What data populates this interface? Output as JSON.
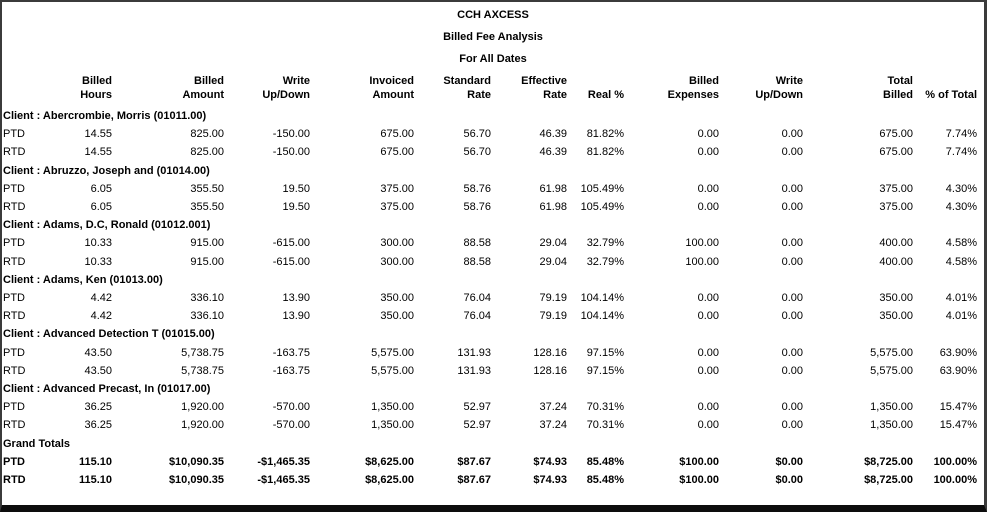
{
  "report": {
    "title": "CCH AXCESS",
    "subtitle": "Billed Fee Analysis",
    "date_range": "For All Dates"
  },
  "table": {
    "columns": [
      {
        "line1": "Billed",
        "line2": "Hours"
      },
      {
        "line1": "Billed",
        "line2": "Amount"
      },
      {
        "line1": "Write",
        "line2": "Up/Down"
      },
      {
        "line1": "Invoiced",
        "line2": "Amount"
      },
      {
        "line1": "Standard",
        "line2": "Rate"
      },
      {
        "line1": "Effective",
        "line2": "Rate"
      },
      {
        "line1": "",
        "line2": "Real %"
      },
      {
        "line1": "Billed",
        "line2": "Expenses"
      },
      {
        "line1": "Write",
        "line2": "Up/Down"
      },
      {
        "line1": "Total",
        "line2": "Billed"
      },
      {
        "line1": "",
        "line2": "% of Total"
      }
    ],
    "groups": [
      {
        "client": "Client : Abercrombie, Morris (01011.00)",
        "rows": [
          {
            "label": "PTD",
            "values": [
              "14.55",
              "825.00",
              "-150.00",
              "675.00",
              "56.70",
              "46.39",
              "81.82%",
              "0.00",
              "0.00",
              "675.00",
              "7.74%"
            ]
          },
          {
            "label": "RTD",
            "values": [
              "14.55",
              "825.00",
              "-150.00",
              "675.00",
              "56.70",
              "46.39",
              "81.82%",
              "0.00",
              "0.00",
              "675.00",
              "7.74%"
            ]
          }
        ]
      },
      {
        "client": "Client : Abruzzo, Joseph and (01014.00)",
        "rows": [
          {
            "label": "PTD",
            "values": [
              "6.05",
              "355.50",
              "19.50",
              "375.00",
              "58.76",
              "61.98",
              "105.49%",
              "0.00",
              "0.00",
              "375.00",
              "4.30%"
            ]
          },
          {
            "label": "RTD",
            "values": [
              "6.05",
              "355.50",
              "19.50",
              "375.00",
              "58.76",
              "61.98",
              "105.49%",
              "0.00",
              "0.00",
              "375.00",
              "4.30%"
            ]
          }
        ]
      },
      {
        "client": "Client : Adams, D.C, Ronald (01012.001)",
        "rows": [
          {
            "label": "PTD",
            "values": [
              "10.33",
              "915.00",
              "-615.00",
              "300.00",
              "88.58",
              "29.04",
              "32.79%",
              "100.00",
              "0.00",
              "400.00",
              "4.58%"
            ]
          },
          {
            "label": "RTD",
            "values": [
              "10.33",
              "915.00",
              "-615.00",
              "300.00",
              "88.58",
              "29.04",
              "32.79%",
              "100.00",
              "0.00",
              "400.00",
              "4.58%"
            ]
          }
        ]
      },
      {
        "client": "Client : Adams, Ken (01013.00)",
        "rows": [
          {
            "label": "PTD",
            "values": [
              "4.42",
              "336.10",
              "13.90",
              "350.00",
              "76.04",
              "79.19",
              "104.14%",
              "0.00",
              "0.00",
              "350.00",
              "4.01%"
            ]
          },
          {
            "label": "RTD",
            "values": [
              "4.42",
              "336.10",
              "13.90",
              "350.00",
              "76.04",
              "79.19",
              "104.14%",
              "0.00",
              "0.00",
              "350.00",
              "4.01%"
            ]
          }
        ]
      },
      {
        "client": "Client : Advanced Detection T (01015.00)",
        "rows": [
          {
            "label": "PTD",
            "values": [
              "43.50",
              "5,738.75",
              "-163.75",
              "5,575.00",
              "131.93",
              "128.16",
              "97.15%",
              "0.00",
              "0.00",
              "5,575.00",
              "63.90%"
            ]
          },
          {
            "label": "RTD",
            "values": [
              "43.50",
              "5,738.75",
              "-163.75",
              "5,575.00",
              "131.93",
              "128.16",
              "97.15%",
              "0.00",
              "0.00",
              "5,575.00",
              "63.90%"
            ]
          }
        ]
      },
      {
        "client": "Client : Advanced Precast, In (01017.00)",
        "rows": [
          {
            "label": "PTD",
            "values": [
              "36.25",
              "1,920.00",
              "-570.00",
              "1,350.00",
              "52.97",
              "37.24",
              "70.31%",
              "0.00",
              "0.00",
              "1,350.00",
              "15.47%"
            ]
          },
          {
            "label": "RTD",
            "values": [
              "36.25",
              "1,920.00",
              "-570.00",
              "1,350.00",
              "52.97",
              "37.24",
              "70.31%",
              "0.00",
              "0.00",
              "1,350.00",
              "15.47%"
            ]
          }
        ]
      }
    ],
    "grand_totals": {
      "label": "Grand Totals",
      "rows": [
        {
          "label": "PTD",
          "values": [
            "115.10",
            "$10,090.35",
            "-$1,465.35",
            "$8,625.00",
            "$87.67",
            "$74.93",
            "85.48%",
            "$100.00",
            "$0.00",
            "$8,725.00",
            "100.00%"
          ]
        },
        {
          "label": "RTD",
          "values": [
            "115.10",
            "$10,090.35",
            "-$1,465.35",
            "$8,625.00",
            "$87.67",
            "$74.93",
            "85.48%",
            "$100.00",
            "$0.00",
            "$8,725.00",
            "100.00%"
          ]
        }
      ]
    }
  }
}
